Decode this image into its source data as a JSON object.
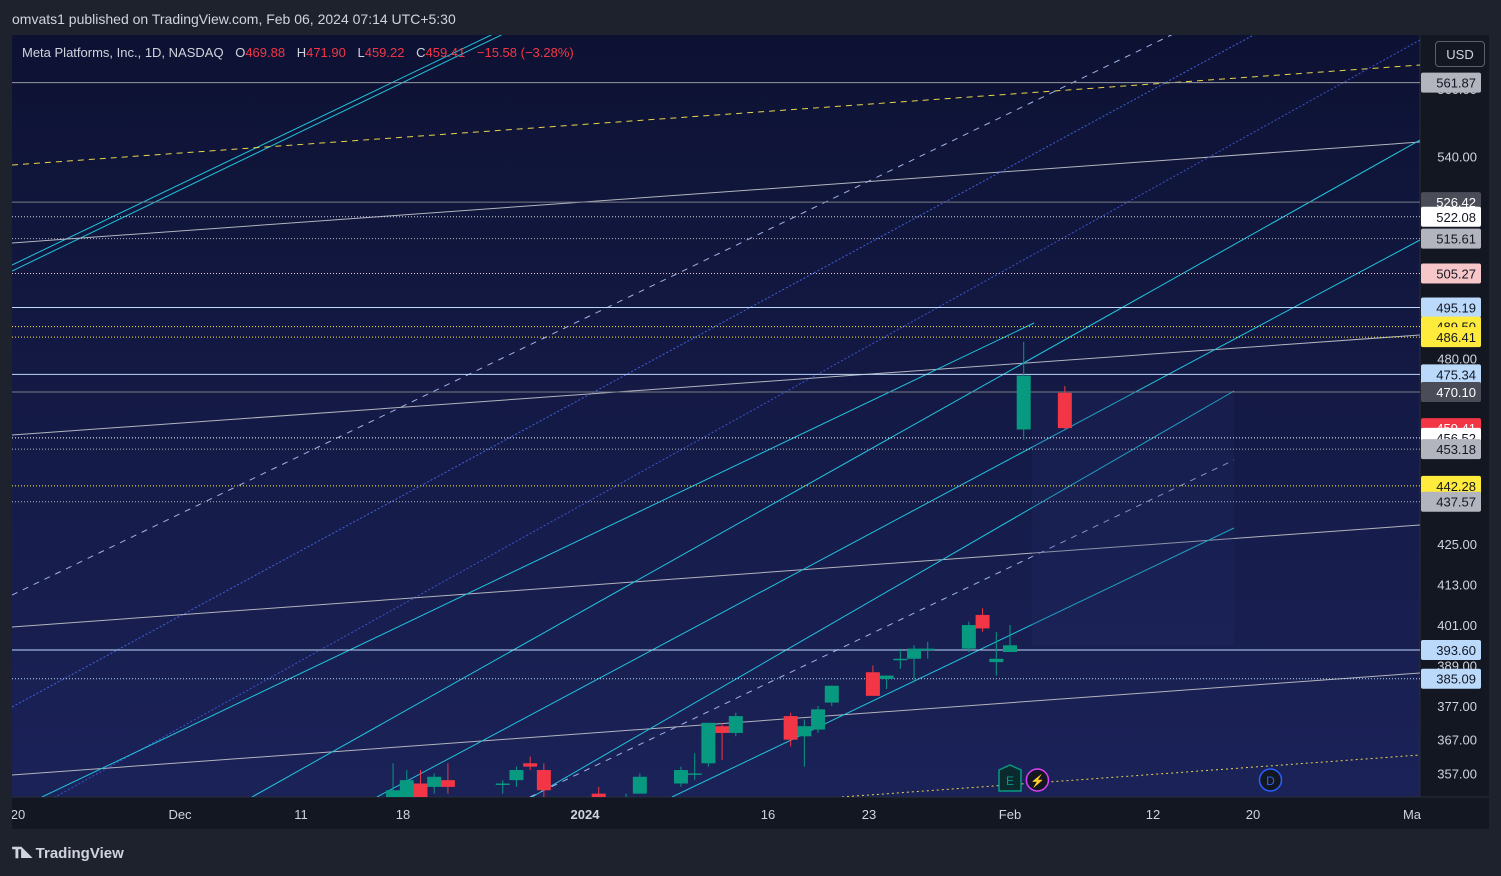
{
  "caption": "omvats1 published on TradingView.com, Feb 06, 2024 07:14 UTC+5:30",
  "footer_brand": "TradingView",
  "currency_button": "USD",
  "legend": {
    "symbol": "Meta Platforms, Inc., 1D, NASDAQ",
    "open_label": "O",
    "open": "469.88",
    "high_label": "H",
    "high": "471.90",
    "low_label": "L",
    "low": "459.22",
    "close_label": "C",
    "close": "459.41",
    "change": "−15.58 (−3.28%)"
  },
  "colors": {
    "background": "#131722",
    "chart_bg_top": "#0d1233",
    "chart_bg_bottom": "#1a2156",
    "up": "#089981",
    "down": "#f23645",
    "channel": "#22c3dc",
    "dashed_yellow": "#e8d44d"
  },
  "chart_data": {
    "type": "candlestick",
    "ylim": [
      350,
      576
    ],
    "y_ticks": [
      "560.00",
      "540.00",
      "480.00",
      "425.00",
      "413.00",
      "401.00",
      "389.00",
      "377.00",
      "367.00",
      "357.00"
    ],
    "x_ticks": [
      "20",
      "Dec",
      "11",
      "18",
      "2024",
      "16",
      "23",
      "Feb",
      "12",
      "20",
      "Ma"
    ],
    "price_labels": [
      {
        "text": "561.87",
        "value": 561.87,
        "bg": "#b2b5be",
        "fg": "#131722"
      },
      {
        "text": "526.42",
        "value": 526.42,
        "bg": "#4a4d57",
        "fg": "#ffffff"
      },
      {
        "text": "522.08",
        "value": 522.08,
        "bg": "#ffffff",
        "fg": "#131722"
      },
      {
        "text": "515.61",
        "value": 515.61,
        "bg": "#b2b5be",
        "fg": "#131722"
      },
      {
        "text": "505.27",
        "value": 505.27,
        "bg": "#f7c6c8",
        "fg": "#131722"
      },
      {
        "text": "495.19",
        "value": 495.19,
        "bg": "#bbd9fb",
        "fg": "#131722"
      },
      {
        "text": "489.50",
        "value": 489.5,
        "bg": "#ffeb3b",
        "fg": "#131722"
      },
      {
        "text": "486.41",
        "value": 486.41,
        "bg": "#ffeb3b",
        "fg": "#131722"
      },
      {
        "text": "475.34",
        "value": 475.34,
        "bg": "#bbd9fb",
        "fg": "#131722"
      },
      {
        "text": "470.10",
        "value": 470.1,
        "bg": "#4a4d57",
        "fg": "#ffffff"
      },
      {
        "text": "459.41",
        "value": 459.41,
        "bg": "#f23645",
        "fg": "#ffffff"
      },
      {
        "text": "456.52",
        "value": 456.52,
        "bg": "#ffffff",
        "fg": "#131722"
      },
      {
        "text": "453.18",
        "value": 453.18,
        "bg": "#b2b5be",
        "fg": "#131722"
      },
      {
        "text": "442.28",
        "value": 442.28,
        "bg": "#ffeb3b",
        "fg": "#131722"
      },
      {
        "text": "437.57",
        "value": 437.57,
        "bg": "#b2b5be",
        "fg": "#131722"
      },
      {
        "text": "393.60",
        "value": 393.6,
        "bg": "#bbd9fb",
        "fg": "#131722"
      },
      {
        "text": "385.09",
        "value": 385.09,
        "bg": "#bbd9fb",
        "fg": "#131722"
      }
    ],
    "horizontal_levels": [
      {
        "value": 561.87,
        "style": "solid",
        "color": "#9598a1"
      },
      {
        "value": 526.42,
        "style": "solid",
        "color": "#787b86"
      },
      {
        "value": 522.08,
        "style": "dotted",
        "color": "#d1d4dc"
      },
      {
        "value": 515.61,
        "style": "dotted",
        "color": "#b2b5be"
      },
      {
        "value": 505.27,
        "style": "dotted",
        "color": "#f7c6c8"
      },
      {
        "value": 495.19,
        "style": "solid",
        "color": "#bbd9fb"
      },
      {
        "value": 489.5,
        "style": "dotted",
        "color": "#ffeb3b"
      },
      {
        "value": 486.41,
        "style": "dotted",
        "color": "#ffeb3b"
      },
      {
        "value": 475.34,
        "style": "solid",
        "color": "#bbd9fb"
      },
      {
        "value": 470.1,
        "style": "solid",
        "color": "#787b86"
      },
      {
        "value": 456.52,
        "style": "dotted",
        "color": "#ffffff"
      },
      {
        "value": 453.18,
        "style": "dotted",
        "color": "#b2b5be"
      },
      {
        "value": 442.28,
        "style": "dotted",
        "color": "#ffeb3b"
      },
      {
        "value": 437.57,
        "style": "dotted",
        "color": "#b2b5be"
      },
      {
        "value": 393.6,
        "style": "solid",
        "color": "#bbd9fb"
      },
      {
        "value": 385.09,
        "style": "dotted",
        "color": "#bbd9fb"
      }
    ],
    "candles": [
      {
        "d": "2023-12-18",
        "o": 344,
        "h": 360,
        "l": 340,
        "c": 352
      },
      {
        "d": "2023-12-19",
        "o": 349,
        "h": 358,
        "l": 346,
        "c": 355
      },
      {
        "d": "2023-12-20",
        "o": 354,
        "h": 358,
        "l": 348,
        "c": 349
      },
      {
        "d": "2023-12-21",
        "o": 353,
        "h": 357,
        "l": 351,
        "c": 356
      },
      {
        "d": "2023-12-22",
        "o": 355,
        "h": 360,
        "l": 351,
        "c": 353
      },
      {
        "d": "2023-12-26",
        "o": 354,
        "h": 355,
        "l": 351,
        "c": 354
      },
      {
        "d": "2023-12-27",
        "o": 355,
        "h": 359,
        "l": 353,
        "c": 358
      },
      {
        "d": "2023-12-28",
        "o": 360,
        "h": 362,
        "l": 358,
        "c": 359
      },
      {
        "d": "2023-12-29",
        "o": 358,
        "h": 360,
        "l": 349,
        "c": 352
      },
      {
        "d": "2024-01-02",
        "o": 351,
        "h": 353,
        "l": 344,
        "c": 346
      },
      {
        "d": "2024-01-03",
        "o": 345,
        "h": 349,
        "l": 342,
        "c": 344
      },
      {
        "d": "2024-01-04",
        "o": 345,
        "h": 351,
        "l": 343,
        "c": 348
      },
      {
        "d": "2024-01-05",
        "o": 351,
        "h": 357,
        "l": 351,
        "c": 356
      },
      {
        "d": "2024-01-08",
        "o": 354,
        "h": 359,
        "l": 353,
        "c": 358
      },
      {
        "d": "2024-01-09",
        "o": 357,
        "h": 363,
        "l": 355,
        "c": 357
      },
      {
        "d": "2024-01-10",
        "o": 360,
        "h": 372,
        "l": 359,
        "c": 372
      },
      {
        "d": "2024-01-11",
        "o": 371,
        "h": 372,
        "l": 361,
        "c": 369
      },
      {
        "d": "2024-01-12",
        "o": 369,
        "h": 375,
        "l": 368,
        "c": 374
      },
      {
        "d": "2024-01-16",
        "o": 374,
        "h": 375,
        "l": 365,
        "c": 367
      },
      {
        "d": "2024-01-17",
        "o": 368,
        "h": 373,
        "l": 359,
        "c": 371
      },
      {
        "d": "2024-01-18",
        "o": 370,
        "h": 377,
        "l": 369,
        "c": 376
      },
      {
        "d": "2024-01-19",
        "o": 378,
        "h": 383,
        "l": 377,
        "c": 383
      },
      {
        "d": "2024-01-22",
        "o": 387,
        "h": 389,
        "l": 380,
        "c": 380
      },
      {
        "d": "2024-01-23",
        "o": 385,
        "h": 386,
        "l": 382,
        "c": 386
      },
      {
        "d": "2024-01-24",
        "o": 391,
        "h": 394,
        "l": 388,
        "c": 391
      },
      {
        "d": "2024-01-25",
        "o": 391,
        "h": 395,
        "l": 384,
        "c": 394
      },
      {
        "d": "2024-01-26",
        "o": 394,
        "h": 396,
        "l": 391,
        "c": 394
      },
      {
        "d": "2024-01-29",
        "o": 394,
        "h": 402,
        "l": 393,
        "c": 401
      },
      {
        "d": "2024-01-30",
        "o": 404,
        "h": 406,
        "l": 399,
        "c": 400
      },
      {
        "d": "2024-01-31",
        "o": 390,
        "h": 399,
        "l": 386,
        "c": 391
      },
      {
        "d": "2024-02-01",
        "o": 393,
        "h": 401,
        "l": 393,
        "c": 395
      },
      {
        "d": "2024-02-02",
        "o": 459,
        "h": 485,
        "l": 456,
        "c": 475
      },
      {
        "d": "2024-02-05",
        "o": 469.88,
        "h": 471.9,
        "l": 459.22,
        "c": 459.41
      }
    ],
    "markers": [
      {
        "label": "E",
        "date": "2024-02-01",
        "color": "#089981"
      },
      {
        "label": "⚡",
        "date": "2024-02-03",
        "color": "#e040fb"
      },
      {
        "label": "D",
        "date": "2024-02-20",
        "color": "#2962ff"
      }
    ]
  }
}
